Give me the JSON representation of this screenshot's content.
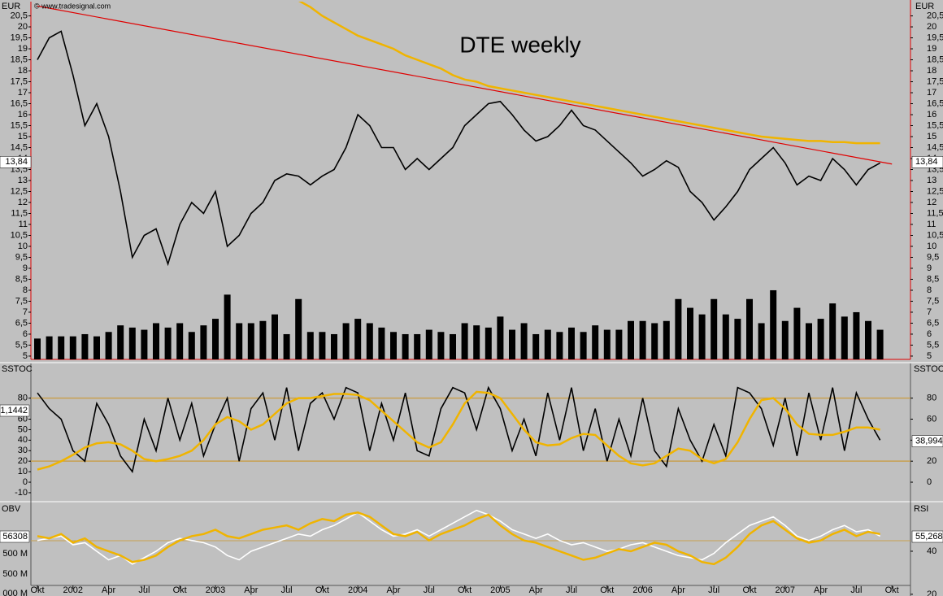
{
  "chart_data": [
    {
      "type": "line",
      "title": "DTE weekly",
      "watermark": "© www.tradesignal.com",
      "y_label": "EUR",
      "y2_label": "EUR",
      "ylim": [
        4.85,
        21.15
      ],
      "yticks": [
        5,
        {
          "value": 5.5,
          "label": "5,5"
        },
        6,
        {
          "value": 6.5,
          "label": "6,5"
        },
        7,
        {
          "value": 7.5,
          "label": "7,5"
        },
        8,
        {
          "value": 8.5,
          "label": "8,5"
        },
        9,
        {
          "value": 9.5,
          "label": "9,5"
        },
        10,
        {
          "value": 10.5,
          "label": "10,5"
        },
        11,
        {
          "value": 11.5,
          "label": "11,5"
        },
        12,
        {
          "value": 12.5,
          "label": "12,5"
        },
        13,
        {
          "value": 13.5,
          "label": "13,5"
        },
        14,
        {
          "value": 14.5,
          "label": "14,5"
        },
        15,
        {
          "value": 15.5,
          "label": "15,5"
        },
        16,
        {
          "value": 16.5,
          "label": "16,5"
        },
        17,
        {
          "value": 17.5,
          "label": "17,5"
        },
        18,
        {
          "value": 18.5,
          "label": "18,5"
        },
        19,
        {
          "value": 19.5,
          "label": "19,5"
        },
        20,
        {
          "value": 20.5,
          "label": "20,5"
        }
      ],
      "last_value": {
        "value": 13.84,
        "label": "13,84"
      },
      "series": [
        {
          "color": "#000000",
          "values": [
            18.5,
            19.5,
            19.8,
            17.8,
            15.5,
            16.5,
            15.0,
            12.5,
            9.5,
            10.5,
            10.8,
            9.2,
            11.0,
            12.0,
            11.5,
            12.5,
            10.0,
            10.5,
            11.5,
            12.0,
            13.0,
            13.3,
            13.2,
            12.8,
            13.2,
            13.5,
            14.5,
            16.0,
            15.5,
            14.5,
            14.5,
            13.5,
            14.0,
            13.5,
            14.0,
            14.5,
            15.5,
            16.0,
            16.5,
            16.6,
            16.0,
            15.3,
            14.8,
            15.0,
            15.5,
            16.2,
            15.5,
            15.3,
            14.8,
            14.3,
            13.8,
            13.2,
            13.5,
            13.9,
            13.6,
            12.5,
            12.0,
            11.2,
            11.8,
            12.5,
            13.5,
            14.0,
            14.5,
            13.8,
            12.8,
            13.2,
            13.0,
            14.0,
            13.5,
            12.8,
            13.5,
            13.8,
            null
          ]
        },
        {
          "color": "#f0b400",
          "values": [
            null,
            null,
            null,
            null,
            null,
            null,
            null,
            null,
            null,
            null,
            null,
            null,
            null,
            null,
            null,
            null,
            null,
            null,
            null,
            null,
            null,
            null,
            21.2,
            20.9,
            20.5,
            20.2,
            19.9,
            19.6,
            19.4,
            19.2,
            19.0,
            18.7,
            18.5,
            18.3,
            18.1,
            17.8,
            17.6,
            17.5,
            17.3,
            17.2,
            17.1,
            17.0,
            16.9,
            16.8,
            16.7,
            16.6,
            16.5,
            16.4,
            16.3,
            16.2,
            16.1,
            16.0,
            15.9,
            15.8,
            15.7,
            15.6,
            15.5,
            15.4,
            15.3,
            15.2,
            15.1,
            15.0,
            14.95,
            14.9,
            14.85,
            14.8,
            14.8,
            14.75,
            14.75,
            14.7,
            14.7,
            14.7,
            null
          ]
        }
      ],
      "volume": {
        "color": "#000000",
        "values": [
          5.8,
          5.9,
          5.9,
          5.9,
          6.0,
          5.9,
          6.1,
          6.4,
          6.3,
          6.2,
          6.5,
          6.3,
          6.5,
          6.1,
          6.4,
          6.7,
          7.8,
          6.5,
          6.5,
          6.6,
          6.9,
          6.0,
          7.6,
          6.1,
          6.1,
          6.0,
          6.5,
          6.7,
          6.5,
          6.3,
          6.1,
          6.0,
          6.0,
          6.2,
          6.1,
          6.0,
          6.5,
          6.4,
          6.3,
          6.8,
          6.2,
          6.5,
          6.0,
          6.2,
          6.1,
          6.3,
          6.1,
          6.4,
          6.2,
          6.2,
          6.6,
          6.6,
          6.5,
          6.6,
          7.6,
          7.2,
          6.9,
          7.6,
          6.9,
          6.7,
          7.6,
          6.5,
          8.0,
          6.6,
          7.2,
          6.5,
          6.7,
          7.4,
          6.8,
          7.0,
          6.6,
          6.2,
          null
        ]
      },
      "trendline": {
        "color": "#e00000",
        "values": [
          20.95,
          13.75
        ]
      }
    },
    {
      "type": "line",
      "y_label": "SSTOC",
      "y2_label": "SSTOC",
      "left_label": "1,1442",
      "ylim": [
        -17,
        113
      ],
      "yticks": [
        -10,
        0,
        10,
        20,
        30,
        40,
        50,
        60,
        80
      ],
      "y2ticks": [
        0,
        20,
        40,
        60,
        80
      ],
      "levels": [
        20,
        80
      ],
      "level_color": "#c8a050",
      "last_value": {
        "value": 38.994,
        "label": "38,994"
      },
      "series": [
        {
          "color": "#000000",
          "values": [
            85,
            70,
            60,
            30,
            20,
            75,
            55,
            25,
            10,
            60,
            30,
            80,
            40,
            75,
            25,
            55,
            80,
            20,
            70,
            85,
            40,
            90,
            30,
            75,
            85,
            60,
            90,
            85,
            30,
            75,
            40,
            85,
            30,
            25,
            70,
            90,
            85,
            50,
            90,
            70,
            30,
            60,
            25,
            85,
            40,
            90,
            30,
            70,
            20,
            60,
            25,
            80,
            30,
            15,
            70,
            40,
            20,
            55,
            25,
            90,
            85,
            70,
            35,
            80,
            25,
            85,
            40,
            90,
            30,
            85,
            60,
            40,
            null
          ]
        },
        {
          "color": "#f0b400",
          "values": [
            12,
            15,
            20,
            26,
            33,
            37,
            38,
            36,
            30,
            22,
            20,
            22,
            25,
            30,
            40,
            55,
            62,
            58,
            50,
            55,
            65,
            75,
            80,
            80,
            82,
            84,
            84,
            83,
            78,
            68,
            58,
            48,
            38,
            33,
            38,
            55,
            75,
            86,
            85,
            80,
            65,
            50,
            38,
            35,
            36,
            42,
            46,
            45,
            35,
            25,
            18,
            16,
            18,
            25,
            32,
            30,
            22,
            18,
            22,
            38,
            60,
            78,
            80,
            70,
            55,
            46,
            45,
            45,
            48,
            52,
            52,
            50,
            null
          ]
        }
      ]
    },
    {
      "type": "line",
      "y_label": "OBV",
      "y2_label": "RSI",
      "left_labels": [
        "56308",
        "500 M",
        "000 M"
      ],
      "right_label": "55,268",
      "ylim": [
        19.2,
        61.9
      ],
      "y2ticks": [
        20,
        40
      ],
      "categories": [
        "Okt",
        null,
        null,
        "2002",
        null,
        null,
        "Apr",
        null,
        null,
        "Jul",
        null,
        null,
        "Okt",
        null,
        null,
        "2003",
        null,
        null,
        "Apr",
        null,
        null,
        "Jul",
        null,
        null,
        "Okt",
        null,
        null,
        "2004",
        null,
        null,
        "Apr",
        null,
        null,
        "Jul",
        null,
        null,
        "Okt",
        null,
        null,
        "2005",
        null,
        null,
        "Apr",
        null,
        null,
        "Jul",
        null,
        null,
        "Okt",
        null,
        null,
        "2006",
        null,
        null,
        "Apr",
        null,
        null,
        "Jul",
        null,
        null,
        "Okt",
        null,
        null,
        "2007",
        null,
        null,
        "Apr",
        null,
        null,
        "Jul",
        null,
        null,
        "Okt"
      ],
      "series": [
        {
          "color": "#ffffff",
          "values": [
            45,
            46,
            47,
            43,
            44,
            40,
            36,
            38,
            34,
            37,
            40,
            44,
            46,
            45,
            44,
            42,
            38,
            36,
            40,
            42,
            44,
            46,
            48,
            47,
            50,
            52,
            55,
            58,
            54,
            50,
            47,
            48,
            50,
            47,
            50,
            53,
            56,
            59,
            57,
            54,
            50,
            48,
            46,
            48,
            45,
            43,
            44,
            42,
            40,
            41,
            43,
            44,
            42,
            40,
            38,
            37,
            36,
            39,
            44,
            48,
            52,
            54,
            56,
            52,
            47,
            45,
            47,
            50,
            52,
            49,
            50,
            47,
            null
          ]
        },
        {
          "color": "#f0b400",
          "values": [
            47,
            46,
            48,
            44,
            46,
            42,
            40,
            38,
            35,
            36,
            38,
            42,
            45,
            47,
            48,
            50,
            47,
            46,
            48,
            50,
            51,
            52,
            50,
            53,
            55,
            54,
            57,
            58,
            56,
            52,
            48,
            47,
            49,
            45,
            48,
            50,
            52,
            55,
            57,
            52,
            48,
            45,
            44,
            42,
            40,
            38,
            36,
            37,
            39,
            41,
            40,
            42,
            44,
            43,
            40,
            38,
            35,
            34,
            37,
            42,
            48,
            52,
            54,
            50,
            46,
            44,
            45,
            48,
            50,
            47,
            49,
            48,
            null
          ]
        }
      ]
    }
  ]
}
